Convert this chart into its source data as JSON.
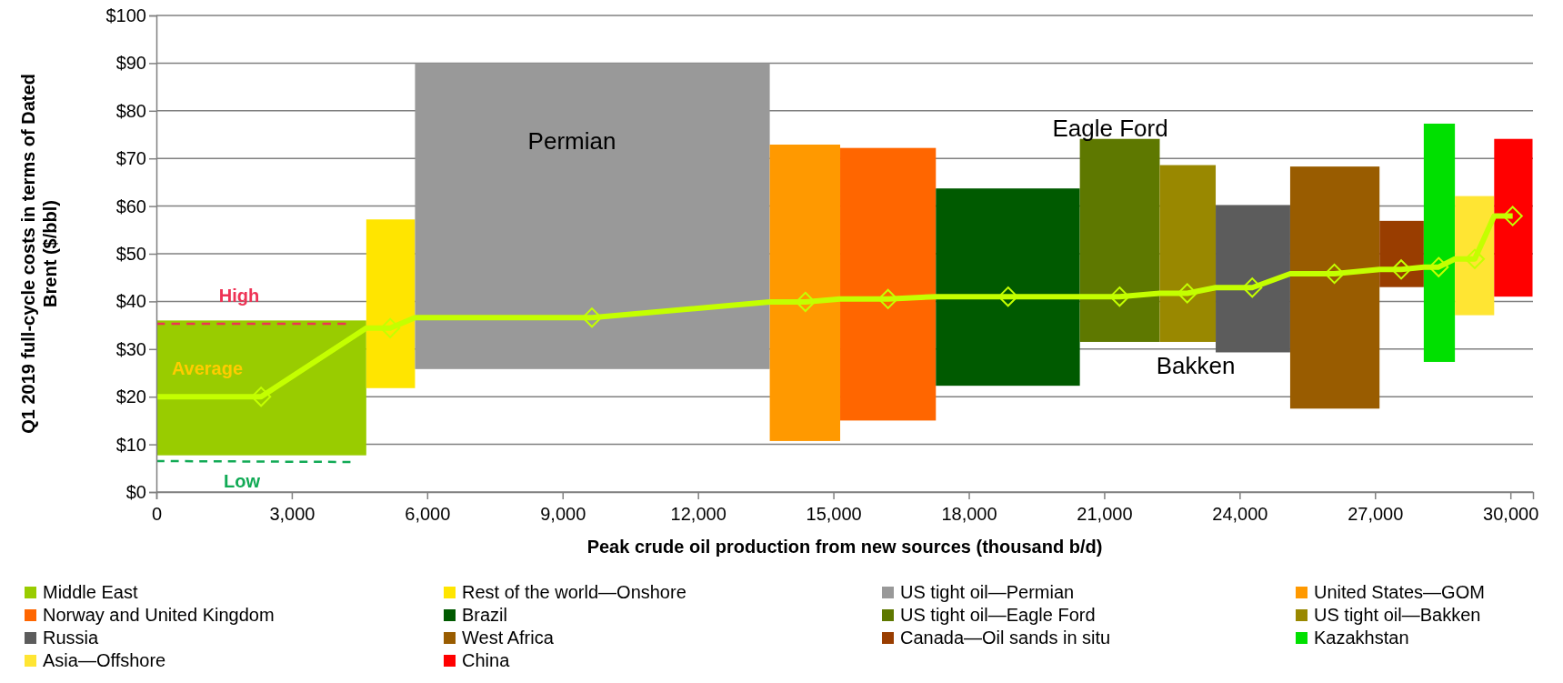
{
  "chart_data": {
    "type": "bar",
    "xlabel": "Peak crude oil production from new sources (thousand b/d)",
    "ylabel": "Q1 2019 full-cycle costs in terms of Dated Brent ($/bbl)",
    "xlim": [
      0,
      30500
    ],
    "xticks": [
      0,
      {
        "value": 3000,
        "label": "3,000"
      },
      {
        "value": 6000,
        "label": "6,000"
      },
      {
        "value": 9000,
        "label": "9,000"
      },
      {
        "value": 12000,
        "label": "12,000"
      },
      {
        "value": 15000,
        "label": "15,000"
      },
      {
        "value": 18000,
        "label": "18,000"
      },
      {
        "value": 21000,
        "label": "21,000"
      },
      {
        "value": 24000,
        "label": "24,000"
      },
      {
        "value": 27000,
        "label": "27,000"
      },
      {
        "value": 30000,
        "label": "30,000"
      }
    ],
    "ylim": [
      0,
      100
    ],
    "yticks": [
      {
        "value": 0,
        "label": "$0"
      },
      {
        "value": 10,
        "label": "$10"
      },
      {
        "value": 20,
        "label": "$20"
      },
      {
        "value": 30,
        "label": "$30"
      },
      {
        "value": 40,
        "label": "$40"
      },
      {
        "value": 50,
        "label": "$50"
      },
      {
        "value": 60,
        "label": "$60"
      },
      {
        "value": 70,
        "label": "$70"
      },
      {
        "value": 80,
        "label": "$80"
      },
      {
        "value": 90,
        "label": "$90"
      },
      {
        "value": 100,
        "label": "$100"
      }
    ],
    "grid": "y",
    "legend": "bottom",
    "x": [
      2325,
      5190,
      9660,
      14370,
      16210,
      18865,
      21345,
      22850,
      24295,
      26110,
      27590,
      28425,
      29205,
      30065
    ],
    "series": [
      {
        "name": "Middle East",
        "color": "#99cc00",
        "base": [
          7.7,
          null,
          null,
          null,
          null,
          null,
          null,
          null,
          null,
          null,
          null,
          null,
          null,
          null
        ],
        "values": [
          28.3,
          null,
          null,
          null,
          null,
          null,
          null,
          null,
          null,
          null,
          null,
          null,
          null,
          null
        ]
      },
      {
        "name": "Rest of the world—Onshore",
        "color": "#ffe500",
        "base": [
          null,
          21.8,
          null,
          null,
          null,
          null,
          null,
          null,
          null,
          null,
          null,
          null,
          null,
          null
        ],
        "values": [
          null,
          35.4,
          null,
          null,
          null,
          null,
          null,
          null,
          null,
          null,
          null,
          null,
          null,
          null
        ]
      },
      {
        "name": "US tight oil—Permian",
        "color": "#999999",
        "base": [
          null,
          null,
          25.8,
          null,
          null,
          null,
          null,
          null,
          null,
          null,
          null,
          null,
          null,
          null
        ],
        "values": [
          null,
          null,
          64.2,
          null,
          null,
          null,
          null,
          null,
          null,
          null,
          null,
          null,
          null,
          null
        ]
      },
      {
        "name": "United States—GOM",
        "color": "#ff9900",
        "base": [
          null,
          null,
          null,
          10.7,
          null,
          null,
          null,
          null,
          null,
          null,
          null,
          null,
          null,
          null
        ],
        "values": [
          null,
          null,
          null,
          62.2,
          null,
          null,
          null,
          null,
          null,
          null,
          null,
          null,
          null,
          null
        ]
      },
      {
        "name": "Norway and United Kingdom",
        "color": "#ff6600",
        "base": [
          null,
          null,
          null,
          null,
          15.0,
          null,
          null,
          null,
          null,
          null,
          null,
          null,
          null,
          null
        ],
        "values": [
          null,
          null,
          null,
          null,
          57.2,
          null,
          null,
          null,
          null,
          null,
          null,
          null,
          null,
          null
        ]
      },
      {
        "name": "Brazil",
        "color": "#005a00",
        "base": [
          null,
          null,
          null,
          null,
          null,
          22.3,
          null,
          null,
          null,
          null,
          null,
          null,
          null,
          null
        ],
        "values": [
          null,
          null,
          null,
          null,
          null,
          41.4,
          null,
          null,
          null,
          null,
          null,
          null,
          null,
          null
        ]
      },
      {
        "name": "US tight oil—Eagle Ford",
        "color": "#5e7800",
        "base": [
          null,
          null,
          null,
          null,
          null,
          null,
          31.5,
          null,
          null,
          null,
          null,
          null,
          null,
          null
        ],
        "values": [
          null,
          null,
          null,
          null,
          null,
          null,
          42.6,
          null,
          null,
          null,
          null,
          null,
          null,
          null
        ]
      },
      {
        "name": "US tight oil—Bakken",
        "color": "#998800",
        "base": [
          null,
          null,
          null,
          null,
          null,
          null,
          null,
          31.5,
          null,
          null,
          null,
          null,
          null,
          null
        ],
        "values": [
          null,
          null,
          null,
          null,
          null,
          null,
          null,
          37.1,
          null,
          null,
          null,
          null,
          null,
          null
        ]
      },
      {
        "name": "Russia",
        "color": "#5c5c5c",
        "base": [
          null,
          null,
          null,
          null,
          null,
          null,
          null,
          null,
          29.3,
          null,
          null,
          null,
          null,
          null
        ],
        "values": [
          null,
          null,
          null,
          null,
          null,
          null,
          null,
          null,
          30.9,
          null,
          null,
          null,
          null,
          null
        ]
      },
      {
        "name": "West Africa",
        "color": "#995c00",
        "base": [
          null,
          null,
          null,
          null,
          null,
          null,
          null,
          null,
          null,
          17.5,
          null,
          null,
          null,
          null
        ],
        "values": [
          null,
          null,
          null,
          null,
          null,
          null,
          null,
          null,
          null,
          50.8,
          null,
          null,
          null,
          null
        ]
      },
      {
        "name": "Canada—Oil sands in situ",
        "color": "#993d00",
        "base": [
          null,
          null,
          null,
          null,
          null,
          null,
          null,
          null,
          null,
          null,
          43.0,
          null,
          null,
          null
        ],
        "values": [
          null,
          null,
          null,
          null,
          null,
          null,
          null,
          null,
          null,
          null,
          13.9,
          null,
          null,
          null
        ]
      },
      {
        "name": "Kazakhstan",
        "color": "#00e000",
        "base": [
          null,
          null,
          null,
          null,
          null,
          null,
          null,
          null,
          null,
          null,
          null,
          27.3,
          null,
          null
        ],
        "values": [
          null,
          null,
          null,
          null,
          null,
          null,
          null,
          null,
          null,
          null,
          null,
          50.0,
          null,
          null
        ]
      },
      {
        "name": "Asia—Offshore",
        "color": "#ffe533",
        "base": [
          null,
          null,
          null,
          null,
          null,
          null,
          null,
          null,
          null,
          null,
          null,
          null,
          37.1,
          null
        ],
        "values": [
          null,
          null,
          null,
          null,
          null,
          null,
          null,
          null,
          null,
          null,
          null,
          null,
          25.0,
          null
        ]
      },
      {
        "name": "China",
        "color": "#ff0000",
        "base": [
          null,
          null,
          null,
          null,
          null,
          null,
          null,
          null,
          null,
          null,
          null,
          null,
          null,
          41.0
        ],
        "values": [
          null,
          null,
          null,
          null,
          null,
          null,
          null,
          null,
          null,
          null,
          null,
          null,
          null,
          33.1
        ]
      },
      {
        "type": "line",
        "color": "#c4ff00",
        "marker": "none",
        "line_style": "solid",
        "x": [
          0,
          2320,
          4650,
          5180,
          5730,
          9650,
          13590,
          14380,
          15150,
          16210,
          17270,
          18870,
          20460,
          21340,
          22230,
          22840,
          23470,
          24280,
          25120,
          26100,
          27100,
          27580,
          28080,
          28410,
          28770,
          29210,
          29640,
          30050
        ],
        "values": [
          20,
          20,
          34.4,
          34.4,
          36.6,
          36.6,
          39.9,
          39.9,
          40.5,
          40.5,
          41.0,
          41.0,
          41.0,
          41.0,
          41.7,
          41.7,
          42.9,
          42.9,
          45.8,
          45.8,
          46.7,
          46.7,
          47.2,
          47.2,
          48.9,
          48.9,
          57.9,
          57.9
        ]
      },
      {
        "type": "scatter",
        "color": "#c4ff00",
        "marker": "diamond",
        "x": [
          2320,
          5180,
          9650,
          14380,
          16210,
          18870,
          21340,
          22840,
          24280,
          26100,
          27580,
          28410,
          29210,
          30050
        ],
        "values": [
          20,
          34.4,
          36.6,
          39.9,
          40.5,
          41.0,
          41.0,
          41.7,
          42.9,
          45.8,
          46.7,
          47.2,
          48.9,
          57.9
        ]
      },
      {
        "type": "line",
        "color": "#ee3355",
        "line_style": "dashed",
        "marker": "none",
        "x": [
          0,
          4200
        ],
        "values": [
          35.3,
          35.3
        ]
      },
      {
        "type": "line",
        "color": "#11aa55",
        "line_style": "dashed",
        "marker": "none",
        "x": [
          0,
          4300
        ],
        "values": [
          6.5,
          6.3
        ]
      }
    ],
    "annotations": [
      "Permian",
      "Eagle Ford",
      "Bakken",
      "High",
      "Average",
      "Low"
    ]
  }
}
